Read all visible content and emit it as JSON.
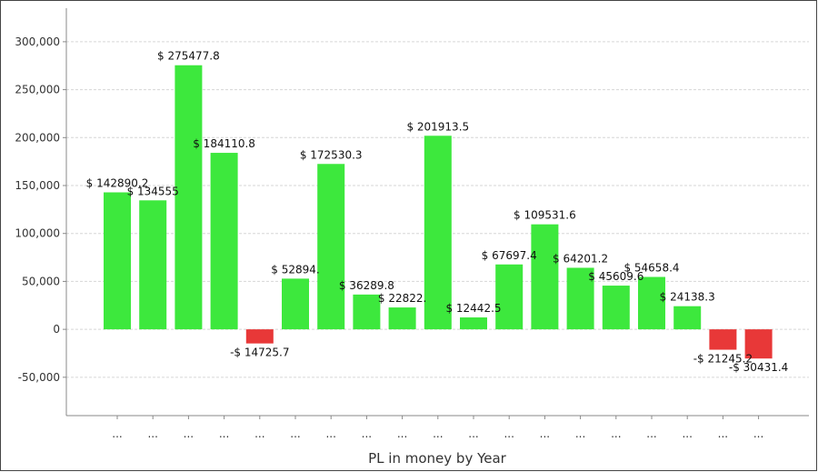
{
  "chart_data": {
    "type": "bar",
    "xlabel": "PL in money by Year",
    "ylabel": "",
    "ylim": [
      -90000,
      335000
    ],
    "yticks": [
      -50000,
      0,
      50000,
      100000,
      150000,
      200000,
      250000,
      300000
    ],
    "ytick_labels": [
      "-50,000",
      "0",
      "50,000",
      "100,000",
      "150,000",
      "200,000",
      "250,000",
      "300,000"
    ],
    "grid": true,
    "categories": [
      "...",
      "...",
      "...",
      "...",
      "...",
      "...",
      "...",
      "...",
      "...",
      "...",
      "...",
      "...",
      "...",
      "...",
      "...",
      "...",
      "...",
      "...",
      "..."
    ],
    "values": [
      142890.2,
      134555,
      275477.8,
      184110.8,
      -14725.7,
      52894.3,
      172530.3,
      36289.8,
      22822.3,
      201913.5,
      12442.5,
      67697.4,
      109531.6,
      64201.2,
      45609.6,
      54658.4,
      24138.3,
      -21245.2,
      -30431.4
    ],
    "data_labels": [
      "$ 142890.2",
      "$ 134555",
      "$ 275477.8",
      "$ 184110.8",
      "-$ 14725.7",
      "$ 52894.",
      "$ 172530.3",
      "$ 36289.8",
      "$ 22822.",
      "$ 201913.5",
      "$ 12442.5",
      "$ 67697.4",
      "$ 109531.6",
      "$ 64201.2",
      "$ 45609.6",
      "$ 54658.4",
      "$ 24138.3",
      "-$ 21245.2",
      "-$ 30431.4"
    ],
    "colors": {
      "positive": "#3de83d",
      "negative": "#e83838",
      "grid": "#d6d6d6",
      "axis": "#888888"
    }
  }
}
